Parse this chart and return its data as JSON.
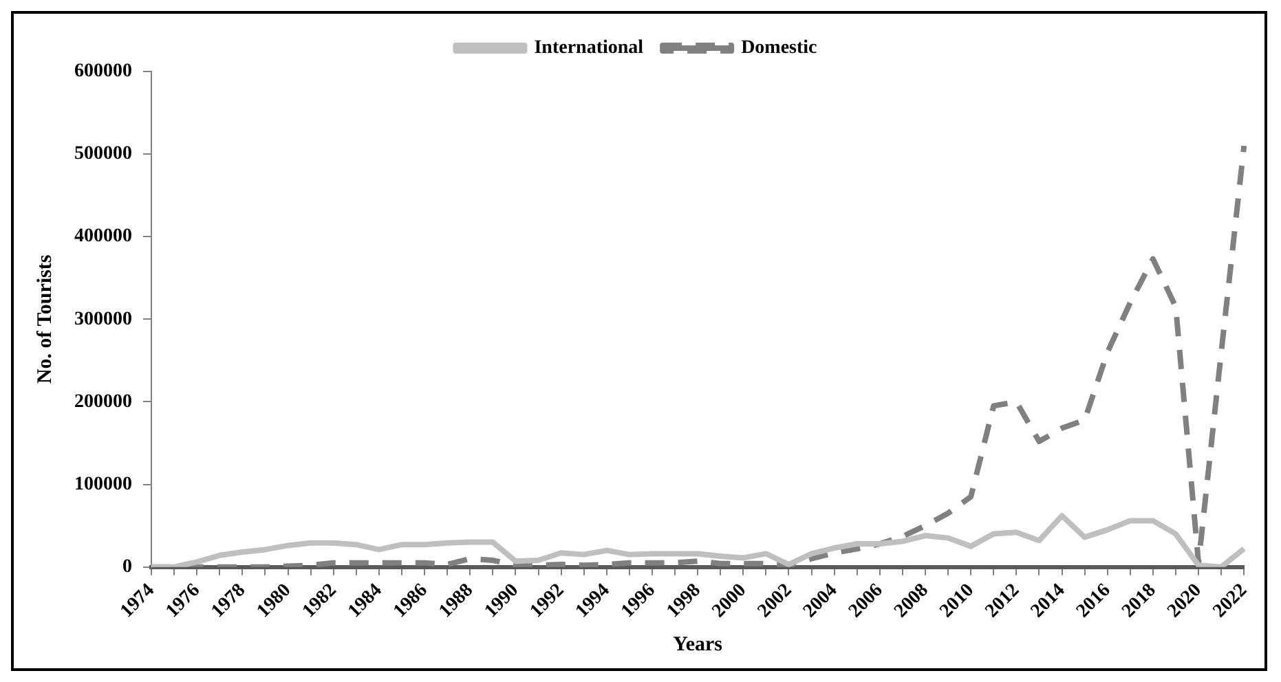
{
  "chart_data": {
    "type": "line",
    "xlabel": "Years",
    "ylabel": "No. of Tourists",
    "categories": [
      "1974",
      null,
      "1976",
      null,
      "1978",
      null,
      "1980",
      null,
      "1982",
      null,
      "1984",
      null,
      "1986",
      null,
      "1988",
      null,
      "1990",
      null,
      "1992",
      null,
      "1994",
      null,
      "1996",
      null,
      "1998",
      null,
      "2000",
      null,
      "2002",
      null,
      "2004",
      null,
      "2006",
      null,
      "2008",
      null,
      "2010",
      null,
      "2012",
      null,
      "2014",
      null,
      "2016",
      null,
      "2018",
      null,
      "2020",
      null,
      "2022"
    ],
    "series": [
      {
        "name": "International",
        "color": "#bfbfbf",
        "line_style": "solid",
        "values": [
          0,
          0,
          6000,
          14000,
          18000,
          21000,
          26000,
          29000,
          29000,
          27000,
          21000,
          27000,
          27000,
          29000,
          30000,
          30000,
          7000,
          8000,
          17000,
          15000,
          20000,
          15000,
          16000,
          16000,
          16000,
          13000,
          11000,
          16000,
          3000,
          16000,
          23000,
          28000,
          28000,
          31000,
          38000,
          35000,
          25000,
          40000,
          42000,
          32000,
          62000,
          36000,
          45000,
          56000,
          56000,
          40000,
          2000,
          0,
          22000
        ]
      },
      {
        "name": "Domestic",
        "color": "#808080",
        "line_style": "dashed",
        "values": [
          0,
          0,
          0,
          0,
          0,
          0,
          1000,
          2000,
          5000,
          5000,
          5000,
          5000,
          5000,
          3000,
          10000,
          8000,
          2000,
          2000,
          3000,
          2000,
          3000,
          5000,
          5000,
          5000,
          7000,
          4000,
          4000,
          4000,
          2000,
          10000,
          17000,
          22000,
          28000,
          37000,
          50000,
          65000,
          85000,
          195000,
          200000,
          152000,
          168000,
          178000,
          260000,
          320000,
          373000,
          315000,
          5000,
          260000,
          510000
        ]
      }
    ],
    "ylim": [
      0,
      600000
    ],
    "yticks": [
      0,
      100000,
      200000,
      300000,
      400000,
      500000,
      600000
    ],
    "grid": false,
    "legend": "top",
    "marker": "none"
  }
}
